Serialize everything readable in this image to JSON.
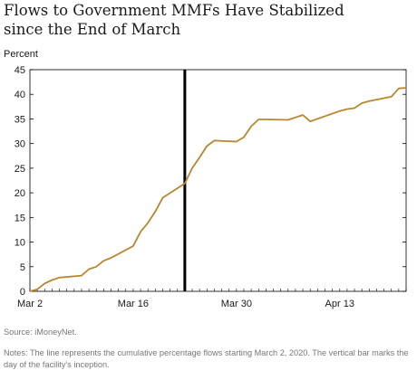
{
  "title_lines": [
    "Flows to Government MMFs Have Stabilized",
    "since the End of March"
  ],
  "source": "Source: iMoneyNet.",
  "notes": "Notes: The line represents the cumulative percentage flows starting March 2, 2020. The vertical bar marks the day of the facility's inception.",
  "colors": {
    "line": "#b8862f",
    "marker": "#000000",
    "axis": "#000000",
    "text": "#1a1a1a"
  },
  "chart_data": {
    "type": "line",
    "title": "Flows to Government MMFs Have Stabilized since the End of March",
    "ylabel": "Percent",
    "xlabel": "",
    "ylim": [
      0,
      45
    ],
    "yticks": [
      0,
      5,
      10,
      15,
      20,
      25,
      30,
      35,
      40,
      45
    ],
    "xlim": [
      "2020-03-02",
      "2020-04-22"
    ],
    "xticks": [
      {
        "date": "2020-03-02",
        "label": "Mar 2"
      },
      {
        "date": "2020-03-16",
        "label": "Mar 16"
      },
      {
        "date": "2020-03-30",
        "label": "Mar 30"
      },
      {
        "date": "2020-04-13",
        "label": "Apr 13"
      }
    ],
    "vertical_marker": {
      "date": "2020-03-23"
    },
    "grid": false,
    "series": [
      {
        "x": [
          "2020-03-02",
          "2020-03-03",
          "2020-03-04",
          "2020-03-05",
          "2020-03-06",
          "2020-03-09",
          "2020-03-10",
          "2020-03-11",
          "2020-03-12",
          "2020-03-13",
          "2020-03-16",
          "2020-03-17",
          "2020-03-18",
          "2020-03-19",
          "2020-03-20",
          "2020-03-23",
          "2020-03-24",
          "2020-03-25",
          "2020-03-26",
          "2020-03-27",
          "2020-03-30",
          "2020-03-31",
          "2020-04-01",
          "2020-04-02",
          "2020-04-03",
          "2020-04-06",
          "2020-04-07",
          "2020-04-08",
          "2020-04-09",
          "2020-04-13",
          "2020-04-14",
          "2020-04-15",
          "2020-04-16",
          "2020-04-17",
          "2020-04-20",
          "2020-04-21",
          "2020-04-22"
        ],
        "values": [
          0.0,
          0.4,
          1.6,
          2.3,
          2.8,
          3.2,
          4.5,
          5.0,
          6.2,
          6.8,
          9.2,
          12.1,
          13.9,
          16.2,
          19.0,
          21.9,
          25.0,
          27.2,
          29.5,
          30.6,
          30.4,
          31.3,
          33.5,
          34.9,
          34.9,
          34.8,
          35.3,
          35.8,
          34.5,
          36.6,
          37.0,
          37.2,
          38.2,
          38.6,
          39.5,
          41.2,
          41.3
        ]
      }
    ]
  }
}
